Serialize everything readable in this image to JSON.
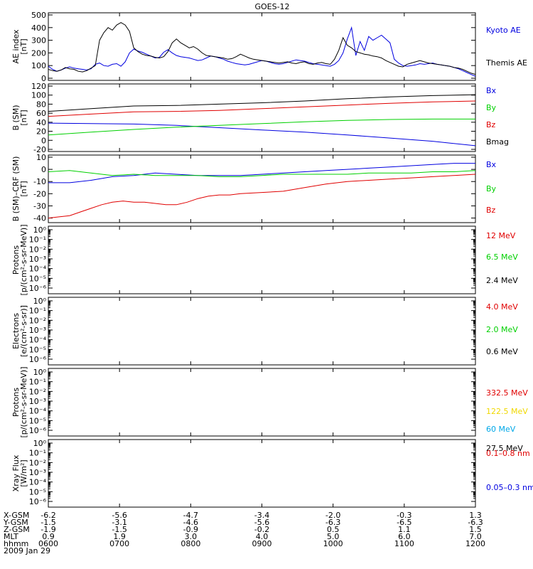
{
  "title": "GOES-12",
  "colors": {
    "black": "#000000",
    "red": "#e00000",
    "green": "#00d000",
    "blue": "#0000e0",
    "yellow": "#f0d800",
    "cyan": "#00a8e8"
  },
  "chart_data": [
    {
      "type": "line",
      "panel": "ae",
      "ylabel": [
        "AE index",
        "[nT]"
      ],
      "ylim": [
        0,
        500
      ],
      "yticks": [
        "0",
        "100",
        "200",
        "300",
        "400",
        "500"
      ],
      "series": [
        {
          "name": "Kyoto AE",
          "color": "blue",
          "x": [
            600,
            606,
            612,
            618,
            624,
            630,
            636,
            642,
            648,
            654,
            660,
            666,
            672,
            678,
            684,
            690,
            696,
            702,
            708,
            714,
            720,
            726,
            732,
            738,
            744,
            750,
            756,
            762,
            768,
            774,
            780,
            786,
            792,
            798,
            804,
            810,
            816,
            822,
            828,
            834,
            840,
            846,
            852,
            858,
            864,
            870,
            876,
            882,
            888,
            894,
            900,
            906,
            912,
            918,
            924,
            930,
            936,
            942,
            948,
            954,
            960,
            966,
            972,
            978,
            984,
            990,
            996,
            1002,
            1008,
            1014,
            1020,
            1026,
            1032,
            1038,
            1044,
            1050,
            1056,
            1062,
            1068,
            1074,
            1080,
            1086,
            1092,
            1098,
            1104,
            1110,
            1116,
            1122,
            1128,
            1134,
            1140,
            1146,
            1152,
            1158,
            1164,
            1170,
            1176,
            1182,
            1188,
            1194,
            1200
          ],
          "y": [
            95,
            70,
            55,
            65,
            80,
            90,
            80,
            75,
            70,
            65,
            75,
            110,
            120,
            100,
            95,
            110,
            115,
            95,
            130,
            200,
            230,
            215,
            205,
            190,
            175,
            160,
            165,
            205,
            225,
            200,
            180,
            170,
            165,
            160,
            150,
            140,
            145,
            160,
            175,
            170,
            160,
            150,
            135,
            125,
            115,
            110,
            105,
            110,
            120,
            130,
            140,
            135,
            125,
            115,
            110,
            115,
            125,
            135,
            145,
            140,
            135,
            125,
            115,
            110,
            105,
            100,
            95,
            110,
            140,
            200,
            310,
            400,
            180,
            290,
            220,
            330,
            300,
            320,
            340,
            310,
            280,
            150,
            120,
            100,
            95,
            100,
            105,
            115,
            110,
            115,
            120,
            110,
            105,
            100,
            95,
            85,
            75,
            60,
            45,
            30,
            15
          ]
        },
        {
          "name": "Themis AE",
          "color": "black",
          "x": [
            600,
            606,
            612,
            618,
            624,
            630,
            636,
            642,
            648,
            654,
            660,
            666,
            672,
            678,
            684,
            690,
            696,
            702,
            708,
            714,
            720,
            726,
            732,
            738,
            744,
            750,
            756,
            762,
            768,
            774,
            780,
            786,
            792,
            798,
            804,
            810,
            816,
            822,
            828,
            834,
            840,
            846,
            852,
            858,
            864,
            870,
            876,
            882,
            888,
            894,
            900,
            906,
            912,
            918,
            924,
            930,
            936,
            942,
            948,
            954,
            960,
            966,
            972,
            978,
            984,
            990,
            996,
            1002,
            1008,
            1014,
            1020,
            1026,
            1032,
            1038,
            1044,
            1050,
            1056,
            1062,
            1068,
            1074,
            1080,
            1086,
            1092,
            1098,
            1104,
            1110,
            1116,
            1122,
            1128,
            1134,
            1140,
            1146,
            1152,
            1158,
            1164,
            1170,
            1176,
            1182,
            1188,
            1194,
            1200
          ],
          "y": [
            70,
            60,
            55,
            65,
            85,
            75,
            70,
            55,
            50,
            60,
            80,
            100,
            300,
            360,
            400,
            380,
            420,
            440,
            420,
            370,
            240,
            210,
            190,
            180,
            175,
            165,
            160,
            170,
            210,
            280,
            310,
            280,
            260,
            240,
            250,
            230,
            200,
            180,
            175,
            170,
            165,
            160,
            150,
            155,
            170,
            190,
            175,
            160,
            150,
            145,
            140,
            135,
            130,
            125,
            120,
            125,
            130,
            120,
            115,
            125,
            130,
            115,
            110,
            120,
            125,
            115,
            110,
            150,
            220,
            320,
            260,
            240,
            210,
            200,
            190,
            185,
            175,
            170,
            160,
            140,
            125,
            110,
            95,
            90,
            110,
            120,
            130,
            140,
            130,
            120,
            115,
            110,
            105,
            100,
            95,
            85,
            80,
            70,
            55,
            40,
            30
          ]
        }
      ]
    },
    {
      "type": "line",
      "panel": "bsm",
      "ylabel": [
        "B (SM)",
        "[nT]"
      ],
      "ylim": [
        -20,
        120
      ],
      "yticks": [
        "-20",
        "0",
        "20",
        "40",
        "60",
        "80",
        "100",
        "120"
      ],
      "series": [
        {
          "name": "Bx",
          "color": "blue",
          "x": [
            600,
            660,
            720,
            780,
            840,
            900,
            960,
            1020,
            1080,
            1140,
            1200
          ],
          "y": [
            38,
            37,
            36,
            33,
            28,
            23,
            18,
            12,
            5,
            -2,
            -12
          ]
        },
        {
          "name": "By",
          "color": "green",
          "x": [
            600,
            660,
            720,
            780,
            840,
            900,
            960,
            1020,
            1080,
            1140,
            1200
          ],
          "y": [
            12,
            18,
            24,
            29,
            33,
            37,
            41,
            44,
            46,
            47,
            47
          ]
        },
        {
          "name": "Bz",
          "color": "red",
          "x": [
            600,
            660,
            720,
            780,
            840,
            900,
            960,
            1020,
            1080,
            1140,
            1200
          ],
          "y": [
            53,
            58,
            63,
            64,
            66,
            70,
            74,
            78,
            82,
            85,
            87
          ]
        },
        {
          "name": "Bmag",
          "color": "black",
          "x": [
            600,
            660,
            720,
            780,
            840,
            900,
            960,
            1020,
            1080,
            1140,
            1200
          ],
          "y": [
            64,
            70,
            76,
            77,
            80,
            83,
            87,
            92,
            96,
            99,
            101
          ]
        }
      ]
    },
    {
      "type": "line",
      "panel": "bdiff",
      "ylabel": [
        "B (SM)–CRF (SM)",
        "[nT]"
      ],
      "ylim": [
        -42,
        10
      ],
      "yticks": [
        "-40",
        "-30",
        "-20",
        "-10",
        "0",
        "10"
      ],
      "series": [
        {
          "name": "Bx",
          "color": "blue",
          "x": [
            600,
            630,
            660,
            690,
            720,
            750,
            780,
            810,
            840,
            870,
            900,
            930,
            960,
            990,
            1020,
            1050,
            1080,
            1110,
            1140,
            1170,
            1200
          ],
          "y": [
            -11,
            -11,
            -9,
            -6,
            -5,
            -3,
            -4,
            -5,
            -5,
            -5,
            -4,
            -3,
            -2,
            -1,
            0,
            1,
            2,
            3,
            4,
            5,
            5
          ]
        },
        {
          "name": "By",
          "color": "green",
          "x": [
            600,
            630,
            660,
            690,
            720,
            750,
            780,
            810,
            840,
            870,
            900,
            930,
            960,
            990,
            1020,
            1050,
            1080,
            1110,
            1140,
            1170,
            1200
          ],
          "y": [
            -2,
            -1,
            -3,
            -5,
            -4,
            -5,
            -5,
            -5,
            -6,
            -6,
            -5,
            -4,
            -4,
            -4,
            -4,
            -3,
            -3,
            -3,
            -2,
            -2,
            -1
          ]
        },
        {
          "name": "Bz",
          "color": "red",
          "x": [
            600,
            615,
            630,
            645,
            660,
            675,
            690,
            705,
            720,
            735,
            750,
            765,
            780,
            795,
            810,
            825,
            840,
            855,
            870,
            900,
            930,
            960,
            990,
            1020,
            1050,
            1080,
            1110,
            1140,
            1170,
            1200
          ],
          "y": [
            -40,
            -39,
            -38,
            -35,
            -32,
            -29,
            -27,
            -26,
            -27,
            -27,
            -28,
            -29,
            -29,
            -27,
            -24,
            -22,
            -21,
            -21,
            -20,
            -19,
            -18,
            -15,
            -12,
            -10,
            -9,
            -8,
            -7,
            -6,
            -5,
            -4
          ]
        }
      ]
    },
    {
      "type": "line",
      "panel": "protons",
      "ylabel": [
        "Protons",
        "[p/(cm²-s-sr-MeV)]"
      ],
      "log": true,
      "yticks": [
        "10⁻⁶",
        "10⁻⁵",
        "10⁻⁴",
        "10⁻³",
        "10⁻²",
        "10⁻¹",
        "10⁰"
      ],
      "series": [
        {
          "name": "12 MeV",
          "color": "red"
        },
        {
          "name": "6.5 MeV",
          "color": "green"
        },
        {
          "name": "2.4 MeV",
          "color": "black"
        }
      ]
    },
    {
      "type": "line",
      "panel": "electrons",
      "ylabel": [
        "Electrons",
        "[e/(cm²-s-sr)]"
      ],
      "log": true,
      "yticks": [
        "10⁻⁶",
        "10⁻⁵",
        "10⁻⁴",
        "10⁻³",
        "10⁻²",
        "10⁻¹",
        "10⁰"
      ],
      "series": [
        {
          "name": "4.0 MeV",
          "color": "red"
        },
        {
          "name": "2.0 MeV",
          "color": "green"
        },
        {
          "name": "0.6 MeV",
          "color": "black"
        }
      ]
    },
    {
      "type": "line",
      "panel": "protons2",
      "ylabel": [
        "Protons",
        "[p/(cm²-s-sr-MeV)]"
      ],
      "log": true,
      "yticks": [
        "10⁻⁶",
        "10⁻⁵",
        "10⁻⁴",
        "10⁻³",
        "10⁻²",
        "10⁻¹",
        "10⁰"
      ],
      "series": [
        {
          "name": "332.5 MeV",
          "color": "red"
        },
        {
          "name": "122.5 MeV",
          "color": "yellow"
        },
        {
          "name": "60 MeV",
          "color": "cyan"
        },
        {
          "name": "27.5 MeV",
          "color": "black"
        }
      ]
    },
    {
      "type": "line",
      "panel": "xray",
      "ylabel": [
        "Xray  Flux",
        "[W/m²]"
      ],
      "log": true,
      "yticks": [
        "10⁻⁶",
        "10⁻⁵",
        "10⁻⁴",
        "10⁻³",
        "10⁻²",
        "10⁻¹",
        "10⁰"
      ],
      "series": [
        {
          "name": "0.1–0.8 nm",
          "color": "red"
        },
        {
          "name": "0.05–0.3 nm",
          "color": "blue"
        }
      ]
    }
  ],
  "x_axis": {
    "xlim": [
      600,
      1200
    ],
    "rows": [
      {
        "label": "X-GSM",
        "values": [
          "-6.2",
          "-5.6",
          "-4.7",
          "-3.4",
          "-2.0",
          "-0.3",
          "1.3"
        ]
      },
      {
        "label": "Y-GSM",
        "values": [
          "-1.5",
          "-3.1",
          "-4.6",
          "-5.6",
          "-6.3",
          "-6.5",
          "-6.3"
        ]
      },
      {
        "label": "Z-GSM",
        "values": [
          "-1.9",
          "-1.5",
          "-0.9",
          "-0.2",
          "0.5",
          "1.1",
          "1.5"
        ]
      },
      {
        "label": "MLT",
        "values": [
          "0.9",
          "1.9",
          "3.0",
          "4.0",
          "5.0",
          "6.0",
          "7.0"
        ]
      },
      {
        "label": "hhmm",
        "values": [
          "0600",
          "0700",
          "0800",
          "0900",
          "1000",
          "1100",
          "1200"
        ]
      }
    ],
    "date": "2009 Jan 29"
  }
}
